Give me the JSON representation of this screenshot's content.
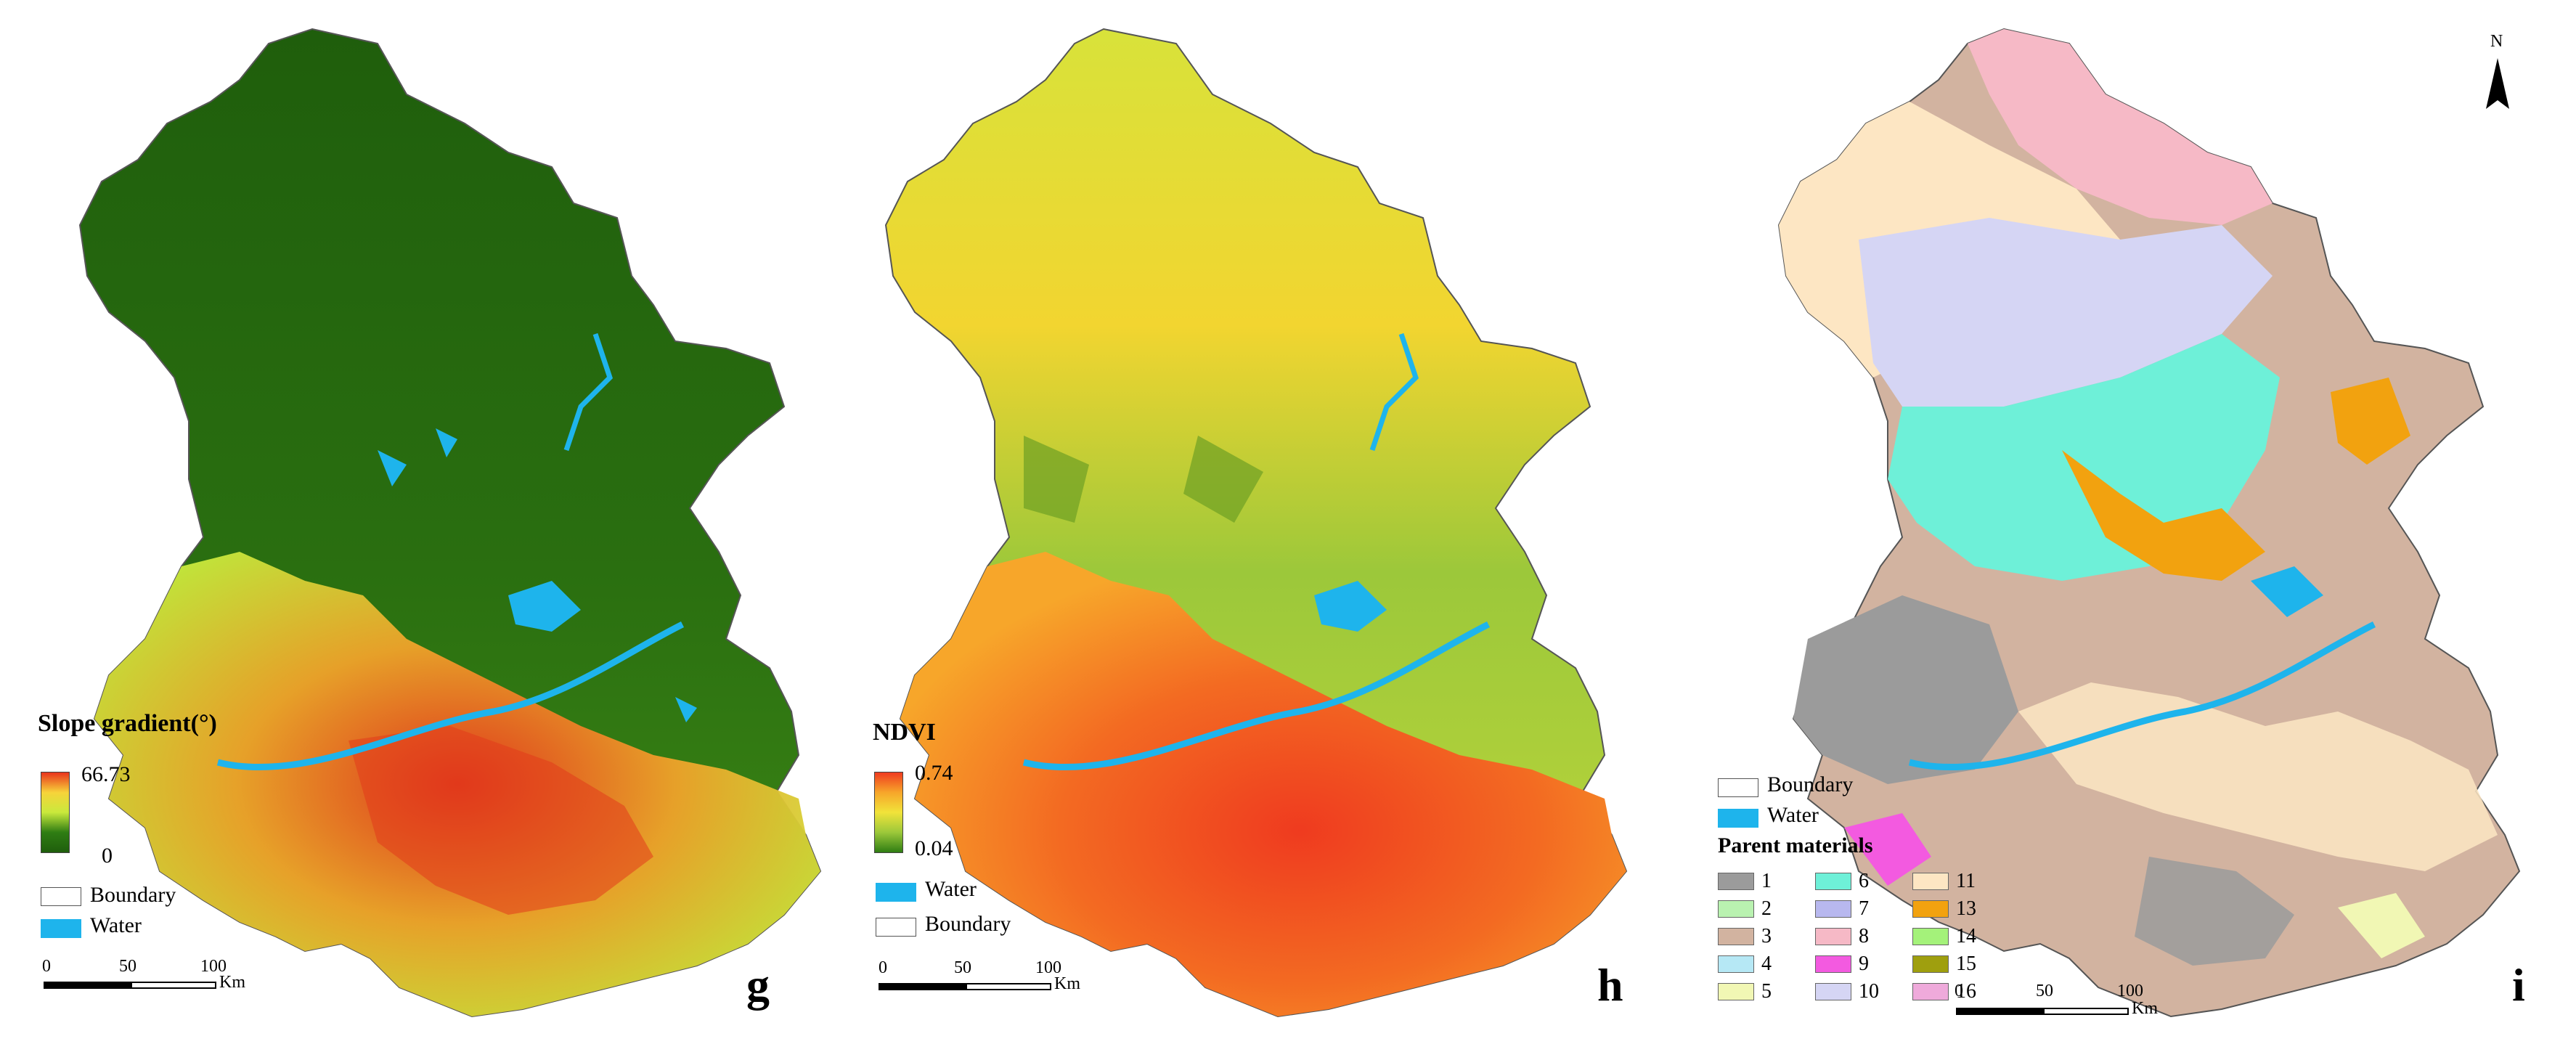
{
  "panels": {
    "g": {
      "letter": "g",
      "legend_title": "Slope gradient(°)",
      "ramp_max": "66.73",
      "ramp_min": "0",
      "ramp_colors": [
        "#e8341c",
        "#f7d33a",
        "#c9e93c",
        "#2f7d13",
        "#1f5e0c"
      ],
      "boundary_label": "Boundary",
      "water_label": "Water",
      "scale": {
        "t0": "0",
        "t1": "50",
        "t2": "100",
        "unit": "Km"
      }
    },
    "h": {
      "letter": "h",
      "legend_title": "NDVI",
      "ramp_max": "0.74",
      "ramp_min": "0.04",
      "ramp_colors": [
        "#ef3b1f",
        "#f7a62a",
        "#f1e33a",
        "#9cc83a",
        "#2f7d13"
      ],
      "water_label": "Water",
      "boundary_label": "Boundary",
      "scale": {
        "t0": "0",
        "t1": "50",
        "t2": "100",
        "unit": "Km"
      }
    },
    "i": {
      "letter": "i",
      "north_label": "N",
      "boundary_label": "Boundary",
      "water_label": "Water",
      "legend_title": "Parent materials",
      "classes": [
        {
          "label": "1",
          "color": "#9b9b9b"
        },
        {
          "label": "2",
          "color": "#b9f2b0"
        },
        {
          "label": "3",
          "color": "#d2b3a0"
        },
        {
          "label": "4",
          "color": "#b6e8f5"
        },
        {
          "label": "5",
          "color": "#f1f7b4"
        },
        {
          "label": "6",
          "color": "#6ef0d8"
        },
        {
          "label": "7",
          "color": "#b8b8ef"
        },
        {
          "label": "8",
          "color": "#f6b9c6"
        },
        {
          "label": "9",
          "color": "#f35ae0"
        },
        {
          "label": "10",
          "color": "#d5d5f4"
        },
        {
          "label": "11",
          "color": "#fde6c3"
        },
        {
          "label": "13",
          "color": "#f2a20f"
        },
        {
          "label": "14",
          "color": "#a4f27a"
        },
        {
          "label": "15",
          "color": "#9f9f0e"
        },
        {
          "label": "16",
          "color": "#efaadb"
        }
      ],
      "scale": {
        "t0": "0",
        "t1": "50",
        "t2": "100",
        "unit": "Km"
      }
    }
  },
  "colors": {
    "water": "#1eb4ec",
    "boundary": "#555555"
  }
}
